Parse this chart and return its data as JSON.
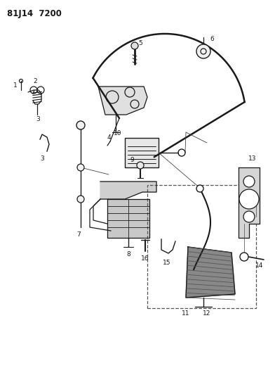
{
  "title": "81J14  7200",
  "bg_color": "#ffffff",
  "lc": "#1a1a1a",
  "fig_width": 3.92,
  "fig_height": 5.33,
  "dpi": 100
}
